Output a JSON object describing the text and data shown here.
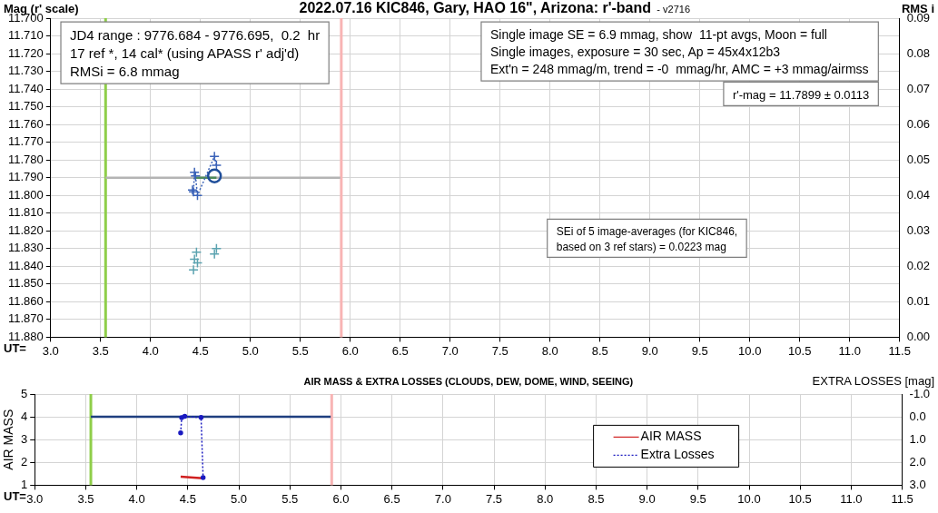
{
  "chart_data": [
    {
      "type": "scatter",
      "title": "2022.07.16 KIC846, Gary, HAO 16\", Arizona: r'-band",
      "subtitle": "- v2716",
      "xlabel": "UT=",
      "ylabel": "Mag (r' scale)",
      "y2label": "RMS i",
      "xlim": [
        3.0,
        11.5
      ],
      "xticks": [
        {
          "value": 3,
          "label": "3.0"
        },
        3.5,
        {
          "value": 4,
          "label": "4.0"
        },
        4.5,
        {
          "value": 5,
          "label": "5.0"
        },
        5.5,
        {
          "value": 6,
          "label": "6.0"
        },
        6.5,
        {
          "value": 7,
          "label": "7.0"
        },
        7.5,
        {
          "value": 8,
          "label": "8.0"
        },
        8.5,
        {
          "value": 9,
          "label": "9.0"
        },
        9.5,
        {
          "value": 10,
          "label": "10.0"
        },
        10.5,
        {
          "value": 11,
          "label": "11.0"
        },
        11.5
      ],
      "ylim": [
        11.88,
        11.7
      ],
      "yticks": [
        {
          "value": 11.7,
          "label": "11.700"
        },
        {
          "value": 11.71,
          "label": "11.710"
        },
        {
          "value": 11.72,
          "label": "11.720"
        },
        {
          "value": 11.73,
          "label": "11.730"
        },
        {
          "value": 11.74,
          "label": "11.740"
        },
        {
          "value": 11.75,
          "label": "11.750"
        },
        {
          "value": 11.76,
          "label": "11.760"
        },
        {
          "value": 11.77,
          "label": "11.770"
        },
        {
          "value": 11.78,
          "label": "11.780"
        },
        {
          "value": 11.79,
          "label": "11.790"
        },
        {
          "value": 11.8,
          "label": "11.800"
        },
        {
          "value": 11.81,
          "label": "11.810"
        },
        {
          "value": 11.82,
          "label": "11.820"
        },
        {
          "value": 11.83,
          "label": "11.830"
        },
        {
          "value": 11.84,
          "label": "11.840"
        },
        {
          "value": 11.85,
          "label": "11.850"
        },
        {
          "value": 11.86,
          "label": "11.860"
        },
        {
          "value": 11.87,
          "label": "11.870"
        },
        {
          "value": 11.88,
          "label": "11.880"
        }
      ],
      "y2lim": [
        0,
        0.09
      ],
      "y2ticks": [
        {
          "value": 0,
          "label": "0.00"
        },
        0.01,
        0.02,
        0.03,
        0.04,
        0.05,
        0.06,
        0.07,
        0.08,
        0.09
      ],
      "grid": true,
      "series": [
        {
          "type": "line",
          "color": "#b4b4b4",
          "marker": "none",
          "x": [
            3.55,
            5.9
          ],
          "values": [
            11.79,
            11.79
          ]
        },
        {
          "type": "line",
          "color": "#4f8a5b",
          "marker": "none",
          "x": [
            4.44,
            4.66
          ],
          "values": [
            11.79,
            11.79
          ]
        },
        {
          "type": "line",
          "line_style": "dotted",
          "color": "#3a62b8",
          "marker": "cross",
          "x": [
            4.42,
            4.43,
            4.44,
            4.45,
            4.47,
            4.64,
            4.66
          ],
          "values": [
            11.797,
            11.798,
            11.787,
            11.789,
            11.8,
            11.778,
            11.783
          ]
        },
        {
          "type": "scatter",
          "color": "#5ba3b0",
          "marker": "cross",
          "x": [
            4.43,
            4.44,
            4.46,
            4.47,
            4.64,
            4.66
          ],
          "values": [
            11.842,
            11.836,
            11.832,
            11.838,
            11.833,
            11.83
          ]
        },
        {
          "type": "scatter",
          "color": "#1f4e9a",
          "marker": "circle",
          "x": [
            4.64
          ],
          "values": [
            11.789
          ]
        }
      ],
      "ref_lines": [
        {
          "axis": "x",
          "value": 3.55,
          "color": "#8fce4a"
        },
        {
          "axis": "x",
          "value": 5.91,
          "color": "#f8b4b4"
        }
      ],
      "annotations": [
        "JD4 range : 9776.684 - 9776.695,  0.2  hr\n17 ref *, 14 cal* (using APASS r' adj'd)\nRMSi = 6.8 mmag",
        "Single image SE = 6.9 mmag, show  11-pt avgs, Moon = full\nSingle images, exposure = 30 sec, Ap = 45x4x12b3\nExt'n = 248 mmag/m, trend = -0  mmag/hr, AMC = +3 mmag/airmss",
        "r'-mag = 11.7899 ± 0.0113",
        "SEi of 5 image-averages (for KIC846,\nbased on 3 ref stars) = 0.0223 mag"
      ]
    },
    {
      "type": "line",
      "title": "AIR MASS & EXTRA LOSSES (CLOUDS, DEW, DOME, WIND, SEEING)",
      "xlabel": "UT=",
      "ylabel": "AIR MASS",
      "y2label": "EXTRA LOSSES [mag]",
      "xlim": [
        3.0,
        11.5
      ],
      "xticks": [
        {
          "value": 3,
          "label": "3.0"
        },
        3.5,
        {
          "value": 4,
          "label": "4.0"
        },
        4.5,
        {
          "value": 5,
          "label": "5.0"
        },
        5.5,
        {
          "value": 6,
          "label": "6.0"
        },
        6.5,
        {
          "value": 7,
          "label": "7.0"
        },
        7.5,
        {
          "value": 8,
          "label": "8.0"
        },
        8.5,
        {
          "value": 9,
          "label": "9.0"
        },
        9.5,
        {
          "value": 10,
          "label": "10.0"
        },
        10.5,
        {
          "value": 11,
          "label": "11.0"
        },
        11.5
      ],
      "ylim": [
        1,
        5
      ],
      "yticks": [
        1,
        2,
        3,
        4,
        5
      ],
      "y2lim": [
        3.0,
        -1.0
      ],
      "y2ticks": [
        {
          "value": -1,
          "label": "-1.0"
        },
        {
          "value": 0,
          "label": "0.0"
        },
        {
          "value": 1,
          "label": "1.0"
        },
        {
          "value": 2,
          "label": "2.0"
        },
        {
          "value": 3,
          "label": "3.0"
        }
      ],
      "grid": true,
      "legend": "bottom right",
      "series": [
        {
          "color": "#1f3f7f",
          "marker": "none",
          "axis": "y2",
          "x": [
            3.55,
            5.9
          ],
          "values": [
            0,
            0
          ]
        },
        {
          "name": "AIR MASS",
          "color": "#d02020",
          "marker": "none",
          "x": [
            4.43,
            4.65
          ],
          "values": [
            1.37,
            1.3
          ]
        },
        {
          "name": "Extra Losses",
          "color": "#1a1ac0",
          "marker": "circle",
          "line_style": "dotted",
          "axis": "y2",
          "x": [
            4.43,
            4.44,
            4.47,
            4.63,
            4.65
          ],
          "values": [
            0.7,
            0.04,
            -0.02,
            0.03,
            2.67
          ]
        }
      ],
      "ref_lines": [
        {
          "axis": "x",
          "value": 3.55,
          "color": "#8fce4a"
        },
        {
          "axis": "x",
          "value": 5.91,
          "color": "#f8b4b4"
        }
      ]
    }
  ]
}
